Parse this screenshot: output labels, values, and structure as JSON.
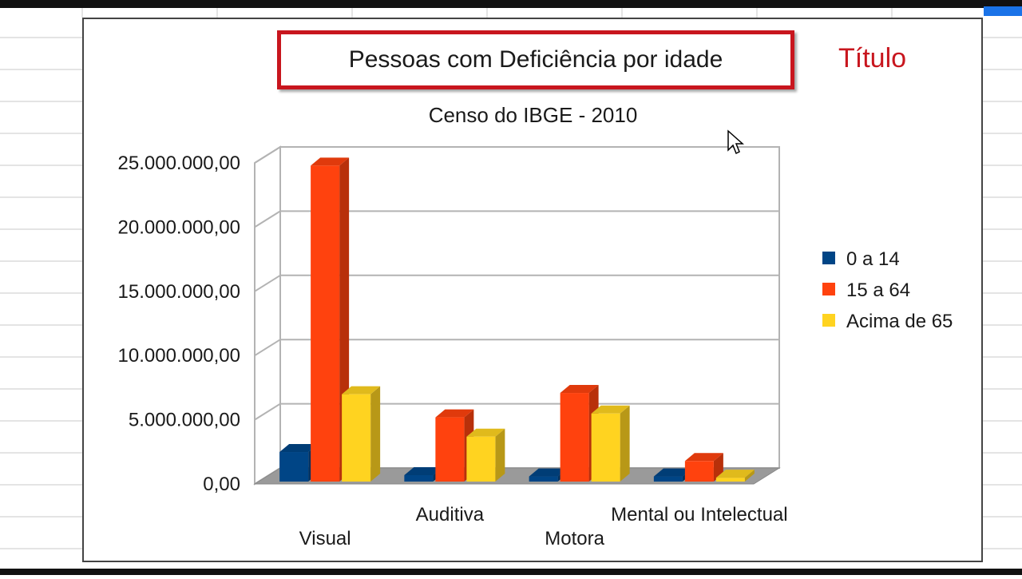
{
  "chart_data": {
    "type": "bar",
    "title": "Pessoas com Deficiência por idade",
    "subtitle": "Censo do IBGE - 2010",
    "categories": [
      "Visual",
      "Auditiva",
      "Motora",
      "Mental ou Intelectual"
    ],
    "series": [
      {
        "name": "0 a 14",
        "color": "#004586",
        "values": [
          2300000,
          500000,
          400000,
          400000
        ]
      },
      {
        "name": "15 a 64",
        "color": "#ff420e",
        "values": [
          24600000,
          5000000,
          6900000,
          1600000
        ]
      },
      {
        "name": "Acima de 65",
        "color": "#ffd320",
        "values": [
          6800000,
          3500000,
          5300000,
          300000
        ]
      }
    ],
    "yticks": [
      "0,00",
      "5.000.000,00",
      "10.000.000,00",
      "15.000.000,00",
      "20.000.000,00",
      "25.000.000,00"
    ],
    "ylim": [
      0,
      25000000
    ],
    "grid": true,
    "legend_position": "right",
    "style": "3d-bar"
  },
  "annotation": "Título",
  "icons": {
    "cursor": "mouse-pointer-icon"
  }
}
